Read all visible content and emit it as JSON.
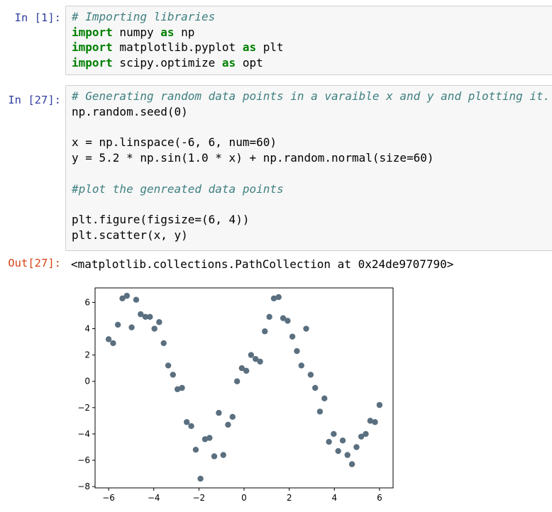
{
  "cell1": {
    "prompt": "In [1]:",
    "lines": [
      {
        "type": "comment",
        "text": "# Importing libraries"
      },
      {
        "type": "import",
        "kw1": "import",
        "mod": " numpy ",
        "kw2": "as",
        "alias": " np"
      },
      {
        "type": "import",
        "kw1": "import",
        "mod": " matplotlib.pyplot ",
        "kw2": "as",
        "alias": " plt"
      },
      {
        "type": "import",
        "kw1": "import",
        "mod": " scipy.optimize ",
        "kw2": "as",
        "alias": " opt"
      }
    ]
  },
  "cell2": {
    "prompt": "In [27]:",
    "lines": [
      {
        "type": "comment",
        "text": "# Generating random data points in a varaible x and y and plotting it."
      },
      {
        "type": "code",
        "text": "np.random.seed(0)"
      },
      {
        "type": "blank",
        "text": ""
      },
      {
        "type": "code",
        "text": "x = np.linspace(-6, 6, num=60)"
      },
      {
        "type": "code",
        "text": "y = 5.2 * np.sin(1.0 * x) + np.random.normal(size=60)"
      },
      {
        "type": "blank",
        "text": ""
      },
      {
        "type": "comment",
        "text": "#plot the genreated data points"
      },
      {
        "type": "blank",
        "text": ""
      },
      {
        "type": "code",
        "text": "plt.figure(figsize=(6, 4))"
      },
      {
        "type": "code",
        "text": "plt.scatter(x, y)"
      }
    ]
  },
  "output": {
    "prompt": "Out[27]:",
    "text": "<matplotlib.collections.PathCollection at 0x24de9707790>"
  },
  "colors": {
    "marker": "#5a6f7f",
    "prompt_in": "#303f9f",
    "prompt_out": "#d84315",
    "comment": "#408080",
    "keyword": "#008000"
  },
  "chart_data": {
    "type": "scatter",
    "title": "",
    "xlabel": "",
    "ylabel": "",
    "xlim": [
      -6.6,
      6.6
    ],
    "ylim": [
      -8.1,
      7.1
    ],
    "xticks": [
      -6,
      -4,
      -2,
      0,
      2,
      4,
      6
    ],
    "yticks": [
      -8,
      -6,
      -4,
      -2,
      0,
      2,
      4,
      6
    ],
    "xtick_labels": [
      "−6",
      "−4",
      "−2",
      "0",
      "2",
      "4",
      "6"
    ],
    "ytick_labels": [
      "−8",
      "−6",
      "−4",
      "−2",
      "0",
      "2",
      "4",
      "6"
    ],
    "grid": false,
    "x": [
      -6.0,
      -5.8,
      -5.59,
      -5.39,
      -5.19,
      -4.98,
      -4.78,
      -4.58,
      -4.37,
      -4.17,
      -3.97,
      -3.76,
      -3.56,
      -3.36,
      -3.15,
      -2.95,
      -2.75,
      -2.54,
      -2.34,
      -2.14,
      -1.93,
      -1.73,
      -1.53,
      -1.32,
      -1.12,
      -0.92,
      -0.71,
      -0.51,
      -0.31,
      -0.1,
      0.1,
      0.31,
      0.51,
      0.71,
      0.92,
      1.12,
      1.32,
      1.53,
      1.73,
      1.93,
      2.14,
      2.34,
      2.54,
      2.75,
      2.95,
      3.15,
      3.36,
      3.56,
      3.76,
      3.97,
      4.17,
      4.37,
      4.58,
      4.78,
      4.98,
      5.19,
      5.39,
      5.59,
      5.8,
      6.0
    ],
    "y": [
      3.2,
      2.9,
      4.3,
      6.3,
      6.5,
      4.1,
      6.2,
      5.1,
      4.9,
      4.9,
      4.0,
      4.5,
      2.9,
      1.2,
      0.5,
      -0.6,
      -0.5,
      -3.1,
      -3.4,
      -5.2,
      -7.4,
      -4.4,
      -4.3,
      -5.7,
      -2.4,
      -5.6,
      -3.3,
      -2.7,
      0.0,
      1.0,
      0.8,
      2.0,
      1.7,
      1.5,
      3.8,
      4.9,
      6.3,
      6.4,
      4.8,
      4.6,
      3.4,
      2.3,
      1.2,
      4.0,
      0.5,
      -0.5,
      -2.3,
      -1.3,
      -4.6,
      -4.0,
      -5.3,
      -4.5,
      -5.6,
      -6.3,
      -5.0,
      -4.2,
      -4.0,
      -3.0,
      -3.1,
      -1.8
    ]
  }
}
